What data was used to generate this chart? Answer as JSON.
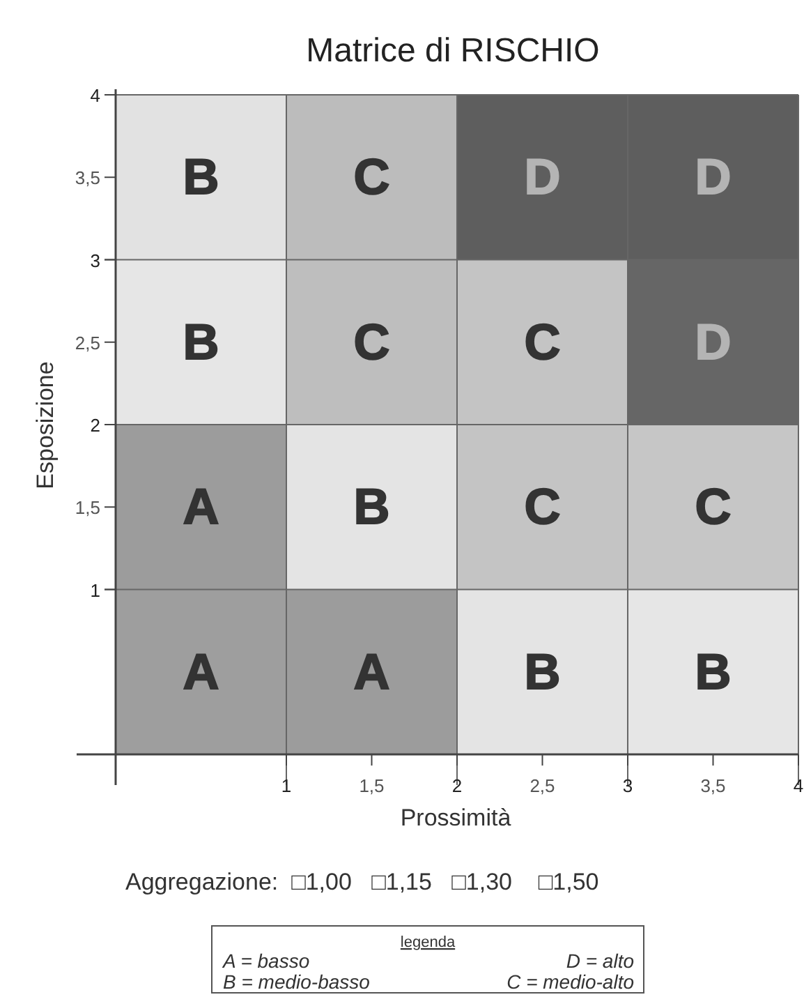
{
  "chart_data": {
    "type": "heatmap",
    "title": "Matrice di RISCHIO",
    "xlabel": "Prossimità",
    "ylabel": "Esposizione",
    "cells": [
      [
        "B",
        "C",
        "D",
        "D"
      ],
      [
        "B",
        "C",
        "C",
        "D"
      ],
      [
        "A",
        "B",
        "C",
        "C"
      ],
      [
        "A",
        "A",
        "B",
        "B"
      ]
    ],
    "colors": [
      [
        "#e2e2e2",
        "#bcbcbc",
        "#5e5e5e",
        "#5e5e5e"
      ],
      [
        "#e6e6e6",
        "#bebebe",
        "#c4c4c4",
        "#666666"
      ],
      [
        "#9c9c9c",
        "#e4e4e4",
        "#c4c4c4",
        "#c6c6c6"
      ],
      [
        "#9e9e9e",
        "#9c9c9c",
        "#e4e4e4",
        "#e6e6e6"
      ]
    ],
    "grid": true,
    "xlim": [
      0,
      4
    ],
    "ylim": [
      0,
      4
    ],
    "xticks": [
      {
        "value": 1,
        "label": "1"
      },
      {
        "value": 1.5,
        "label": "1,5"
      },
      {
        "value": 2,
        "label": "2"
      },
      {
        "value": 2.5,
        "label": "2,5"
      },
      {
        "value": 3,
        "label": "3"
      },
      {
        "value": 3.5,
        "label": "3,5"
      },
      {
        "value": 4,
        "label": "4"
      }
    ],
    "yticks": [
      {
        "value": 1,
        "label": "1"
      },
      {
        "value": 1.5,
        "label": "1,5"
      },
      {
        "value": 2,
        "label": "2"
      },
      {
        "value": 2.5,
        "label": "2,5"
      },
      {
        "value": 3,
        "label": "3"
      },
      {
        "value": 3.5,
        "label": "3,5"
      },
      {
        "value": 4,
        "label": "4"
      }
    ],
    "annotations": [
      "Aggregazione:  □1,00   □1,15   □1,30    □1,50",
      "legenda",
      "A = basso",
      "D = alto",
      "B = medio-basso",
      "C = medio-alto"
    ]
  }
}
